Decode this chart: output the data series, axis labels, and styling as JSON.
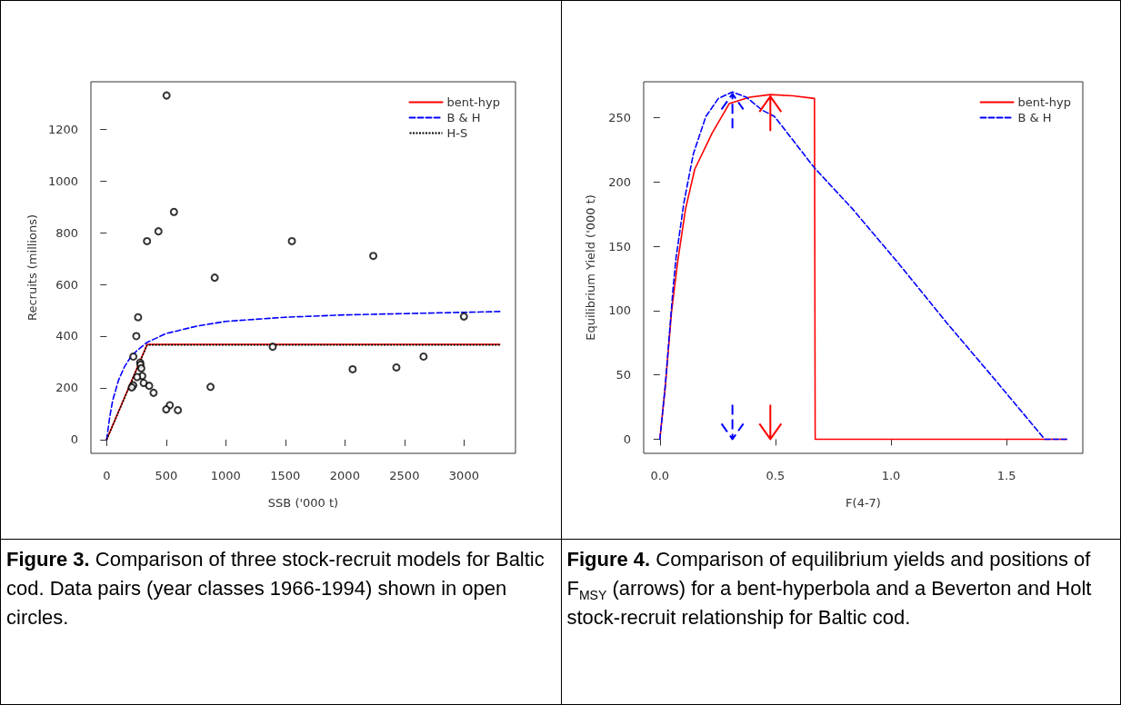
{
  "chart_data": [
    {
      "type": "scatter",
      "xlabel": "SSB ('000 t)",
      "ylabel": "Recruits (millions)",
      "xlim": [
        -132,
        3432
      ],
      "ylim": [
        -53,
        1383
      ],
      "xticks": [
        0,
        500,
        1000,
        1500,
        2000,
        2500,
        3000
      ],
      "yticks": [
        0,
        200,
        400,
        600,
        800,
        1000,
        1200
      ],
      "grid": false,
      "legend": "top right",
      "annotations": [
        "Figure 3.",
        "Comparison of three stock-recruit models for Baltic cod. Data pairs (year classes 1966-1994) shown in open circles."
      ],
      "series": [
        {
          "color": "#000000",
          "marker": "circle",
          "x": [
            503,
            565,
            435,
            339,
            1555,
            2238,
            907,
            264,
            2999,
            249,
            1394,
            224,
            2660,
            281,
            284,
            291,
            2065,
            2432,
            299,
            256,
            311,
            357,
            224,
            211,
            872,
            394,
            530,
            500,
            598
          ],
          "values": [
            1330,
            880,
            805,
            767,
            767,
            710,
            626,
            473,
            476,
            400,
            359,
            321,
            321,
            298,
            290,
            276,
            272,
            279,
            246,
            242,
            219,
            208,
            210,
            202,
            204,
            181,
            133,
            117,
            114
          ]
        },
        {
          "type": "line",
          "name": "bent-hyp",
          "color": "#ff0000",
          "line_style": "solid",
          "marker": "none",
          "x": [
            0,
            340,
            3300
          ],
          "values": [
            0,
            368,
            368
          ]
        },
        {
          "type": "line",
          "name": "B & H",
          "color": "#0000ff",
          "line_style": "dashed",
          "marker": "none",
          "x": [
            0,
            25,
            50,
            100,
            150,
            200,
            250,
            340,
            500,
            750,
            1000,
            1500,
            2000,
            2500,
            3000,
            3300
          ],
          "values": [
            0,
            85,
            150,
            230,
            282,
            318,
            342,
            376,
            410,
            438,
            457,
            473,
            482,
            487,
            492,
            495
          ]
        },
        {
          "type": "line",
          "name": "H-S",
          "color": "#000000",
          "line_style": "dotted",
          "marker": "none",
          "x": [
            0,
            340,
            3300
          ],
          "values": [
            0,
            366,
            366
          ]
        }
      ]
    },
    {
      "type": "line",
      "xlabel": "F(4-7)",
      "ylabel": "Equilibrium Yield ('000 t)",
      "xlim": [
        -0.07,
        1.83
      ],
      "ylim": [
        -11,
        278
      ],
      "xticks": [
        {
          "value": 0,
          "label": "0.0"
        },
        0.5,
        {
          "value": 1,
          "label": "1.0"
        },
        1.5
      ],
      "yticks": [
        0,
        50,
        100,
        150,
        200,
        250
      ],
      "grid": false,
      "legend": "top right",
      "annotations": [
        "Figure 4.",
        "Comparison of equilibrium yields and positions of F$_{MSY}$ (arrows) for a bent-hyperbola and a Beverton and Holt stock-recruit relationship for Baltic cod."
      ],
      "series": [
        {
          "name": "bent-hyp",
          "color": "#ff0000",
          "line_style": "solid",
          "marker": "none",
          "x": [
            0,
            0.023,
            0.05,
            0.077,
            0.111,
            0.151,
            0.226,
            0.3,
            0.388,
            0.478,
            0.577,
            0.669,
            0.672,
            1.76
          ],
          "values": [
            0,
            40,
            98,
            138,
            179,
            210,
            238,
            261,
            266,
            268,
            267,
            265,
            0,
            0
          ]
        },
        {
          "name": "B & H",
          "color": "#0000ff",
          "line_style": "dashed",
          "marker": "none",
          "x": [
            0,
            0.023,
            0.057,
            0.07,
            0.104,
            0.145,
            0.199,
            0.253,
            0.314,
            0.374,
            0.442,
            0.496,
            0.669,
            0.834,
            1.036,
            1.239,
            1.442,
            1.665,
            1.76
          ],
          "values": [
            0,
            41,
            117,
            141,
            184,
            222,
            251,
            265,
            270,
            266,
            256,
            251,
            211,
            179,
            136,
            91,
            48,
            0,
            0
          ]
        }
      ]
    }
  ]
}
